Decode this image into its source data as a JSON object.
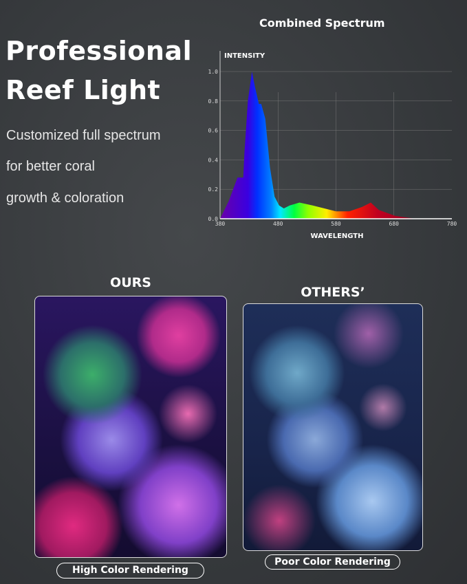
{
  "headline": {
    "line1": "Professional",
    "line2": "Reef Light"
  },
  "subtitle": [
    "Customized full spectrum",
    "for better coral",
    "growth & coloration"
  ],
  "chart_data": {
    "type": "area",
    "title": "Combined Spectrum",
    "xlabel": "WAVELENGTH",
    "ylabel": "INTENSITY",
    "xlim": [
      380,
      780
    ],
    "ylim": [
      0,
      1.0
    ],
    "xticks": [
      "380",
      "480",
      "580",
      "680",
      "780"
    ],
    "yticks": [
      "0.0",
      "0.2",
      "0.4",
      "0.6",
      "0.8",
      "1.0"
    ],
    "grid": true,
    "x": [
      380,
      395,
      410,
      420,
      422,
      428,
      435,
      440,
      447,
      451,
      458,
      466,
      474,
      482,
      490,
      500,
      517,
      540,
      580,
      603,
      625,
      640,
      654,
      682,
      717,
      780
    ],
    "y": [
      0,
      0.12,
      0.28,
      0.28,
      0.45,
      0.8,
      1.0,
      0.9,
      0.78,
      0.78,
      0.68,
      0.35,
      0.15,
      0.09,
      0.07,
      0.09,
      0.11,
      0.09,
      0.05,
      0.05,
      0.08,
      0.11,
      0.06,
      0.02,
      0,
      0
    ]
  },
  "comparison": {
    "ours": {
      "heading": "OURS",
      "label": "High Color Rendering"
    },
    "others": {
      "heading": "OTHERS’",
      "label": "Poor Color Rendering"
    }
  }
}
